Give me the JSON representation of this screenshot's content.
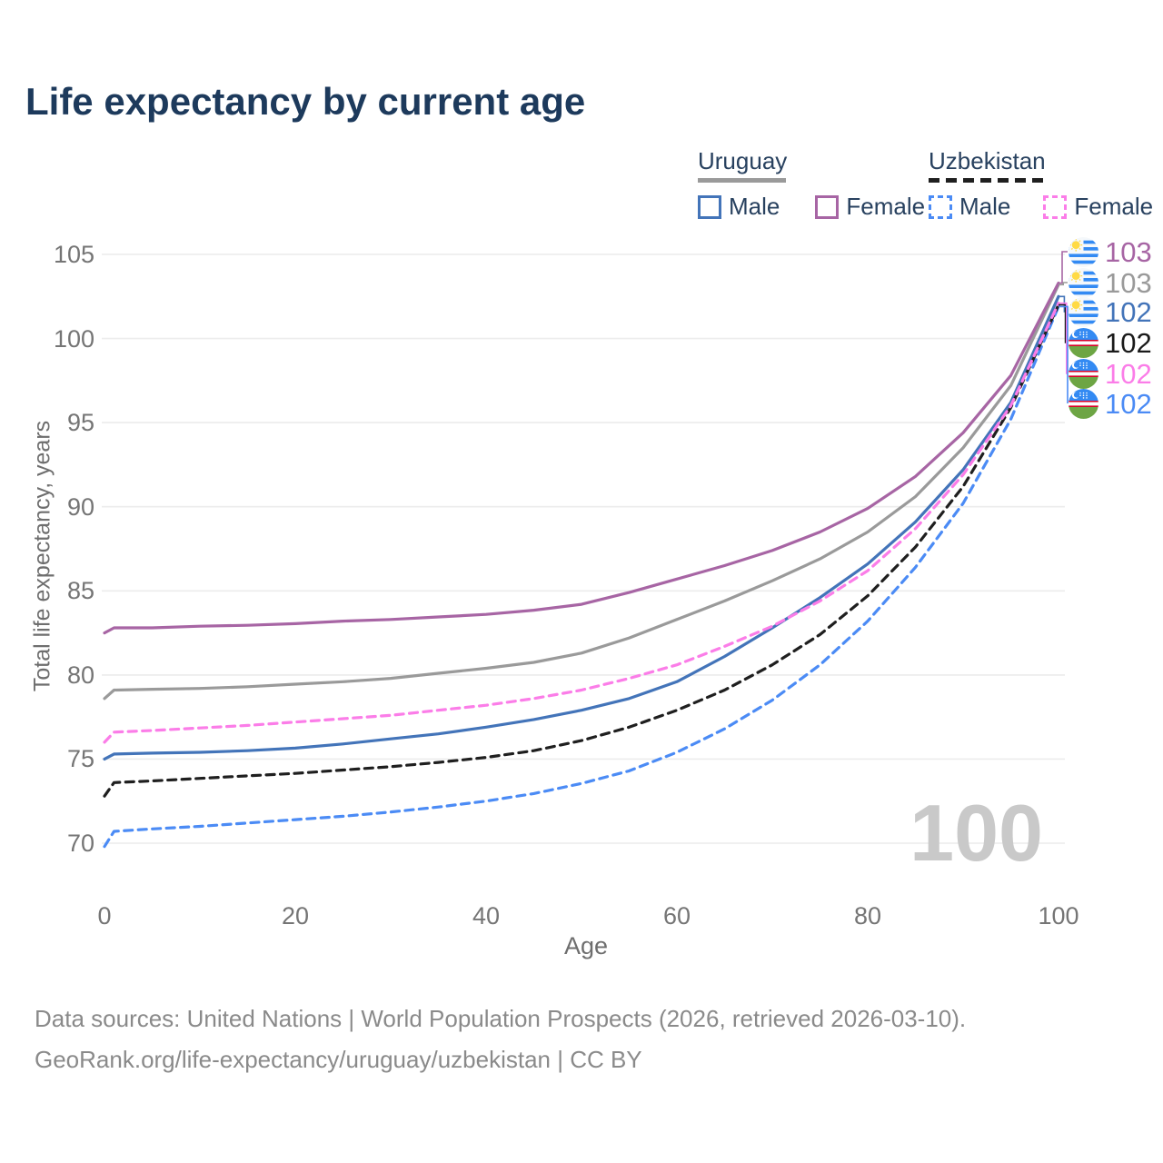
{
  "title": "Life expectancy by current age",
  "watermark": "100",
  "legend": {
    "groups": [
      {
        "country": "Uruguay",
        "line_style": "solid",
        "underline_color": "#9a9a9a",
        "items": [
          {
            "label": "Male",
            "color": "#4374b9",
            "dashed": false
          },
          {
            "label": "Female",
            "color": "#a765a4",
            "dashed": false
          }
        ]
      },
      {
        "country": "Uzbekistan",
        "line_style": "dashed",
        "underline_color": "#1f1f1f",
        "items": [
          {
            "label": "Male",
            "color": "#4b8bf5",
            "dashed": true
          },
          {
            "label": "Female",
            "color": "#fb7de8",
            "dashed": true
          }
        ]
      }
    ]
  },
  "chart_data": {
    "type": "line",
    "title": "Life expectancy by current age",
    "xlabel": "Age",
    "ylabel": "Total life expectancy, years",
    "x_ticks": [
      0,
      20,
      40,
      60,
      80,
      100
    ],
    "y_ticks": [
      70,
      75,
      80,
      85,
      90,
      95,
      100,
      105
    ],
    "xlim": [
      0,
      100
    ],
    "ylim": [
      69.5,
      105.5
    ],
    "grid": "horizontal",
    "legend_position": "top-right",
    "x": [
      0,
      1,
      5,
      10,
      15,
      20,
      25,
      30,
      35,
      40,
      45,
      50,
      55,
      60,
      65,
      70,
      75,
      80,
      85,
      90,
      95,
      100
    ],
    "series": [
      {
        "name": "Uruguay Female",
        "country": "Uruguay",
        "sex": "Female",
        "color": "#a765a4",
        "dashed": false,
        "values": [
          82.5,
          82.8,
          82.8,
          82.9,
          82.95,
          83.05,
          83.2,
          83.3,
          83.45,
          83.6,
          83.85,
          84.2,
          84.9,
          85.7,
          86.5,
          87.4,
          88.5,
          89.9,
          91.8,
          94.4,
          97.8,
          103.3
        ],
        "end_label": "103"
      },
      {
        "name": "Uruguay",
        "country": "Uruguay",
        "sex": "Total",
        "color": "#9a9a9a",
        "dashed": false,
        "values": [
          78.6,
          79.1,
          79.15,
          79.2,
          79.3,
          79.45,
          79.6,
          79.8,
          80.1,
          80.4,
          80.75,
          81.3,
          82.2,
          83.3,
          84.4,
          85.6,
          86.9,
          88.5,
          90.6,
          93.5,
          97.2,
          103.2
        ],
        "end_label": "103"
      },
      {
        "name": "Uruguay Male",
        "country": "Uruguay",
        "sex": "Male",
        "color": "#4374b9",
        "dashed": false,
        "values": [
          75.0,
          75.3,
          75.35,
          75.4,
          75.5,
          75.65,
          75.9,
          76.2,
          76.5,
          76.9,
          77.35,
          77.9,
          78.6,
          79.6,
          81.1,
          82.8,
          84.6,
          86.6,
          89.1,
          92.2,
          96.2,
          102.5
        ],
        "end_label": "102"
      },
      {
        "name": "Uzbekistan",
        "country": "Uzbekistan",
        "sex": "Total",
        "color": "#1f1f1f",
        "dashed": true,
        "values": [
          72.8,
          73.6,
          73.7,
          73.85,
          74.0,
          74.15,
          74.35,
          74.55,
          74.8,
          75.1,
          75.5,
          76.1,
          76.9,
          77.9,
          79.1,
          80.6,
          82.4,
          84.7,
          87.6,
          91.2,
          95.9,
          102.0
        ],
        "end_label": "102"
      },
      {
        "name": "Uzbekistan Female",
        "country": "Uzbekistan",
        "sex": "Female",
        "color": "#fb7de8",
        "dashed": true,
        "values": [
          76.0,
          76.6,
          76.7,
          76.85,
          77.0,
          77.2,
          77.4,
          77.6,
          77.9,
          78.2,
          78.6,
          79.1,
          79.8,
          80.6,
          81.7,
          82.9,
          84.4,
          86.2,
          88.7,
          91.9,
          96.0,
          102.1
        ],
        "end_label": "102"
      },
      {
        "name": "Uzbekistan Male",
        "country": "Uzbekistan",
        "sex": "Male",
        "color": "#4b8bf5",
        "dashed": true,
        "values": [
          69.8,
          70.7,
          70.85,
          71.0,
          71.2,
          71.4,
          71.6,
          71.85,
          72.15,
          72.5,
          72.95,
          73.55,
          74.3,
          75.4,
          76.8,
          78.5,
          80.6,
          83.2,
          86.4,
          90.2,
          95.2,
          101.9
        ],
        "end_label": "102"
      }
    ]
  },
  "end_labels": [
    {
      "series_index": 0,
      "flag": "uy",
      "value": "103",
      "color": "#a765a4"
    },
    {
      "series_index": 1,
      "flag": "uy",
      "value": "103",
      "color": "#9a9a9a"
    },
    {
      "series_index": 2,
      "flag": "uy",
      "value": "102",
      "color": "#4374b9"
    },
    {
      "series_index": 3,
      "flag": "uz",
      "value": "102",
      "color": "#1a1a1a"
    },
    {
      "series_index": 4,
      "flag": "uz",
      "value": "102",
      "color": "#fb7de8"
    },
    {
      "series_index": 5,
      "flag": "uz",
      "value": "102",
      "color": "#4b8bf5"
    }
  ],
  "footer": {
    "line1": "Data sources: United Nations | World Population Prospects (2026, retrieved 2026-03-10).",
    "line2": "GeoRank.org/life-expectancy/uruguay/uzbekistan | CC BY"
  }
}
